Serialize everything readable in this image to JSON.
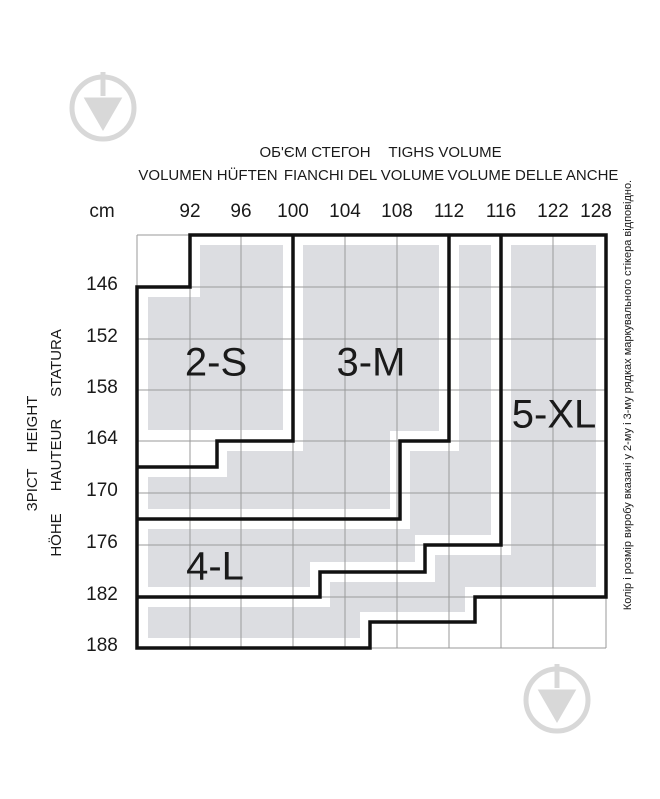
{
  "header": {
    "row1": [
      "ОБ'ЄМ СТЕГОН",
      "TIGHS VOLUME"
    ],
    "row2": [
      "VOLUMEN HÜFTEN",
      "FIANCHI DEL VOLUME",
      "VOLUME DELLE ANCHE"
    ]
  },
  "unit": "cm",
  "columns": [
    "92",
    "96",
    "100",
    "104",
    "108",
    "112",
    "116",
    "122",
    "128"
  ],
  "rows": [
    "146",
    "152",
    "158",
    "164",
    "170",
    "176",
    "182",
    "188"
  ],
  "side_labels": [
    "ЗРІСТ",
    "HEIGHT",
    "HÖHE",
    "HAUTEUR",
    "STATURA"
  ],
  "sizes": [
    "2-S",
    "3-M",
    "4-L",
    "5-XL"
  ],
  "note": "Колір і розмір виробу вказані у 2-му і 3-му рядках маркувального стікера відповідно."
}
